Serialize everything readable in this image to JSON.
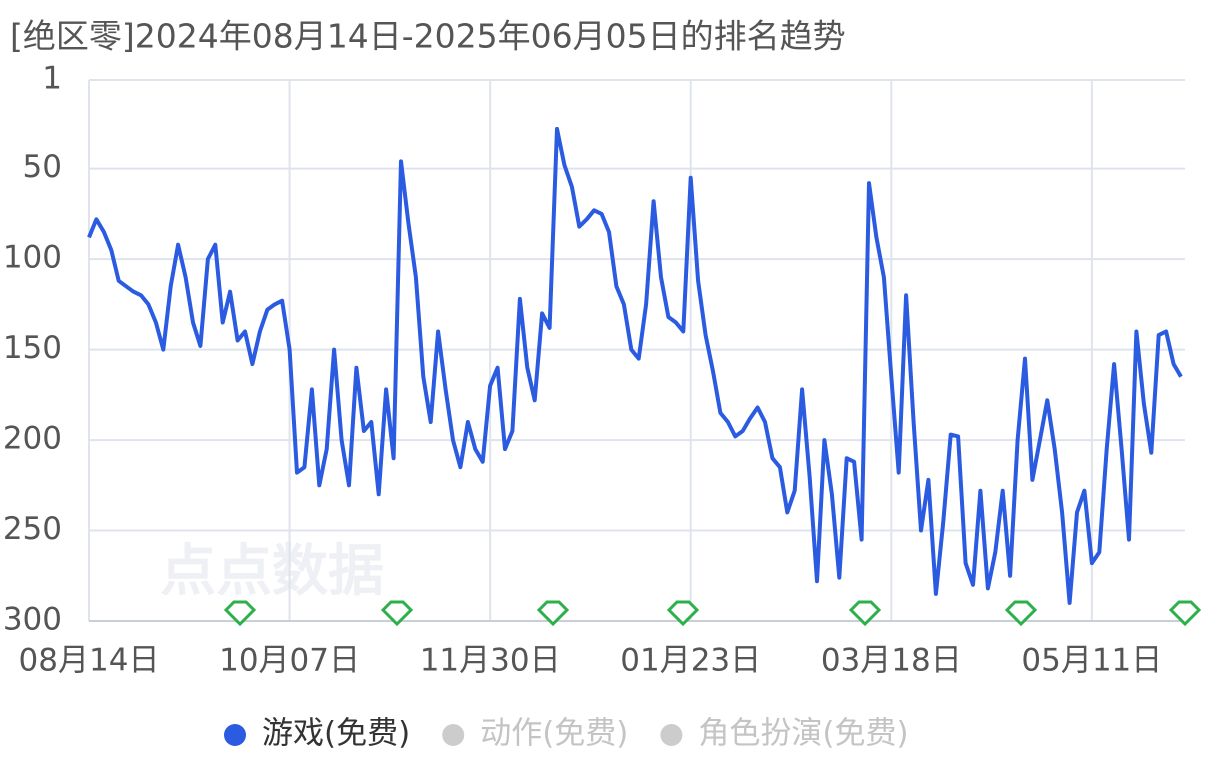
{
  "chart_data": {
    "type": "line",
    "title": "[绝区零]2024年08月14日-2025年06月05日的排名趋势",
    "watermark": "点点数据",
    "categories": [
      "08月14日",
      null,
      null,
      null,
      null,
      null,
      null,
      null,
      null,
      null,
      null,
      null,
      null,
      null,
      null,
      null,
      null,
      null,
      null,
      null,
      null,
      null,
      null,
      null,
      null,
      null,
      null,
      "10月07日",
      null,
      null,
      null,
      null,
      null,
      null,
      null,
      null,
      null,
      null,
      null,
      null,
      null,
      null,
      null,
      null,
      null,
      null,
      null,
      null,
      null,
      null,
      null,
      null,
      null,
      null,
      "11月30日",
      null,
      null,
      null,
      null,
      null,
      null,
      null,
      null,
      null,
      null,
      null,
      null,
      null,
      null,
      null,
      null,
      null,
      null,
      null,
      null,
      null,
      null,
      null,
      null,
      null,
      null,
      "01月23日",
      null,
      null,
      null,
      null,
      null,
      null,
      null,
      null,
      null,
      null,
      null,
      null,
      null,
      null,
      null,
      null,
      null,
      null,
      null,
      null,
      null,
      null,
      null,
      null,
      null,
      null,
      "03月18日",
      null,
      null,
      null,
      null,
      null,
      null,
      null,
      null,
      null,
      null,
      null,
      null,
      null,
      null,
      null,
      null,
      null,
      null,
      null,
      null,
      null,
      null,
      null,
      null,
      null,
      null,
      "05月11日",
      null,
      null,
      null,
      null,
      null,
      null,
      null,
      null,
      null,
      null,
      null,
      null
    ],
    "series": [
      {
        "name": "游戏(免费)",
        "color": "#2a5be0",
        "values": [
          88,
          78,
          85,
          95,
          112,
          115,
          118,
          120,
          125,
          135,
          150,
          115,
          92,
          110,
          135,
          148,
          100,
          92,
          135,
          118,
          145,
          140,
          158,
          140,
          128,
          125,
          123,
          150,
          218,
          215,
          172,
          225,
          205,
          150,
          200,
          225,
          160,
          195,
          190,
          230,
          172,
          210,
          46,
          80,
          110,
          165,
          190,
          140,
          172,
          200,
          215,
          190,
          205,
          212,
          170,
          160,
          205,
          195,
          122,
          160,
          178,
          130,
          138,
          28,
          48,
          60,
          82,
          78,
          73,
          75,
          85,
          115,
          125,
          150,
          155,
          125,
          68,
          110,
          132,
          135,
          140,
          55,
          112,
          142,
          162,
          185,
          190,
          198,
          195,
          188,
          182,
          190,
          210,
          215,
          240,
          228,
          172,
          220,
          278,
          200,
          230,
          276,
          210,
          212,
          255,
          58,
          88,
          110,
          165,
          218,
          120,
          190,
          250,
          222,
          285,
          245,
          197,
          198,
          268,
          280,
          228,
          282,
          262,
          228,
          275,
          200,
          155,
          222,
          200,
          178,
          205,
          240,
          290,
          240,
          228,
          268,
          262,
          205,
          158,
          205,
          255,
          140,
          180,
          207,
          142,
          140,
          158,
          165
        ]
      },
      {
        "name": "动作(免费)",
        "color": "#cccccc",
        "visible": false
      },
      {
        "name": "角色扮演(免费)",
        "color": "#cccccc",
        "visible": false
      }
    ],
    "ylim": [
      1,
      300
    ],
    "y_inverted": true,
    "yticks": [
      1,
      50,
      100,
      150,
      200,
      250,
      300
    ],
    "grid": true
  }
}
